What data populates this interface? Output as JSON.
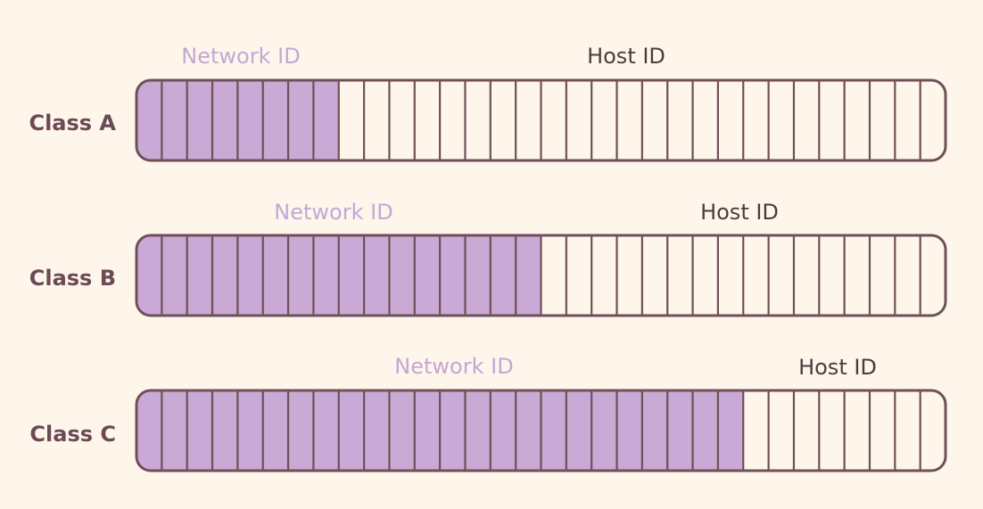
{
  "total_bits": 32,
  "colors": {
    "background": "#fef6ea",
    "network_fill": "#c9a9d5",
    "host_fill": "#fef6ea",
    "stroke": "#6f5059",
    "class_label": "#6b4a55",
    "network_label": "#c5a7d6",
    "host_label": "#4a3d40"
  },
  "rows": [
    {
      "label": "Class A",
      "network_label": "Network ID",
      "host_label": "Host ID",
      "network_bits": 8
    },
    {
      "label": "Class B",
      "network_label": "Network ID",
      "host_label": "Host ID",
      "network_bits": 16
    },
    {
      "label": "Class C",
      "network_label": "Network ID",
      "host_label": "Host ID",
      "network_bits": 24
    }
  ]
}
